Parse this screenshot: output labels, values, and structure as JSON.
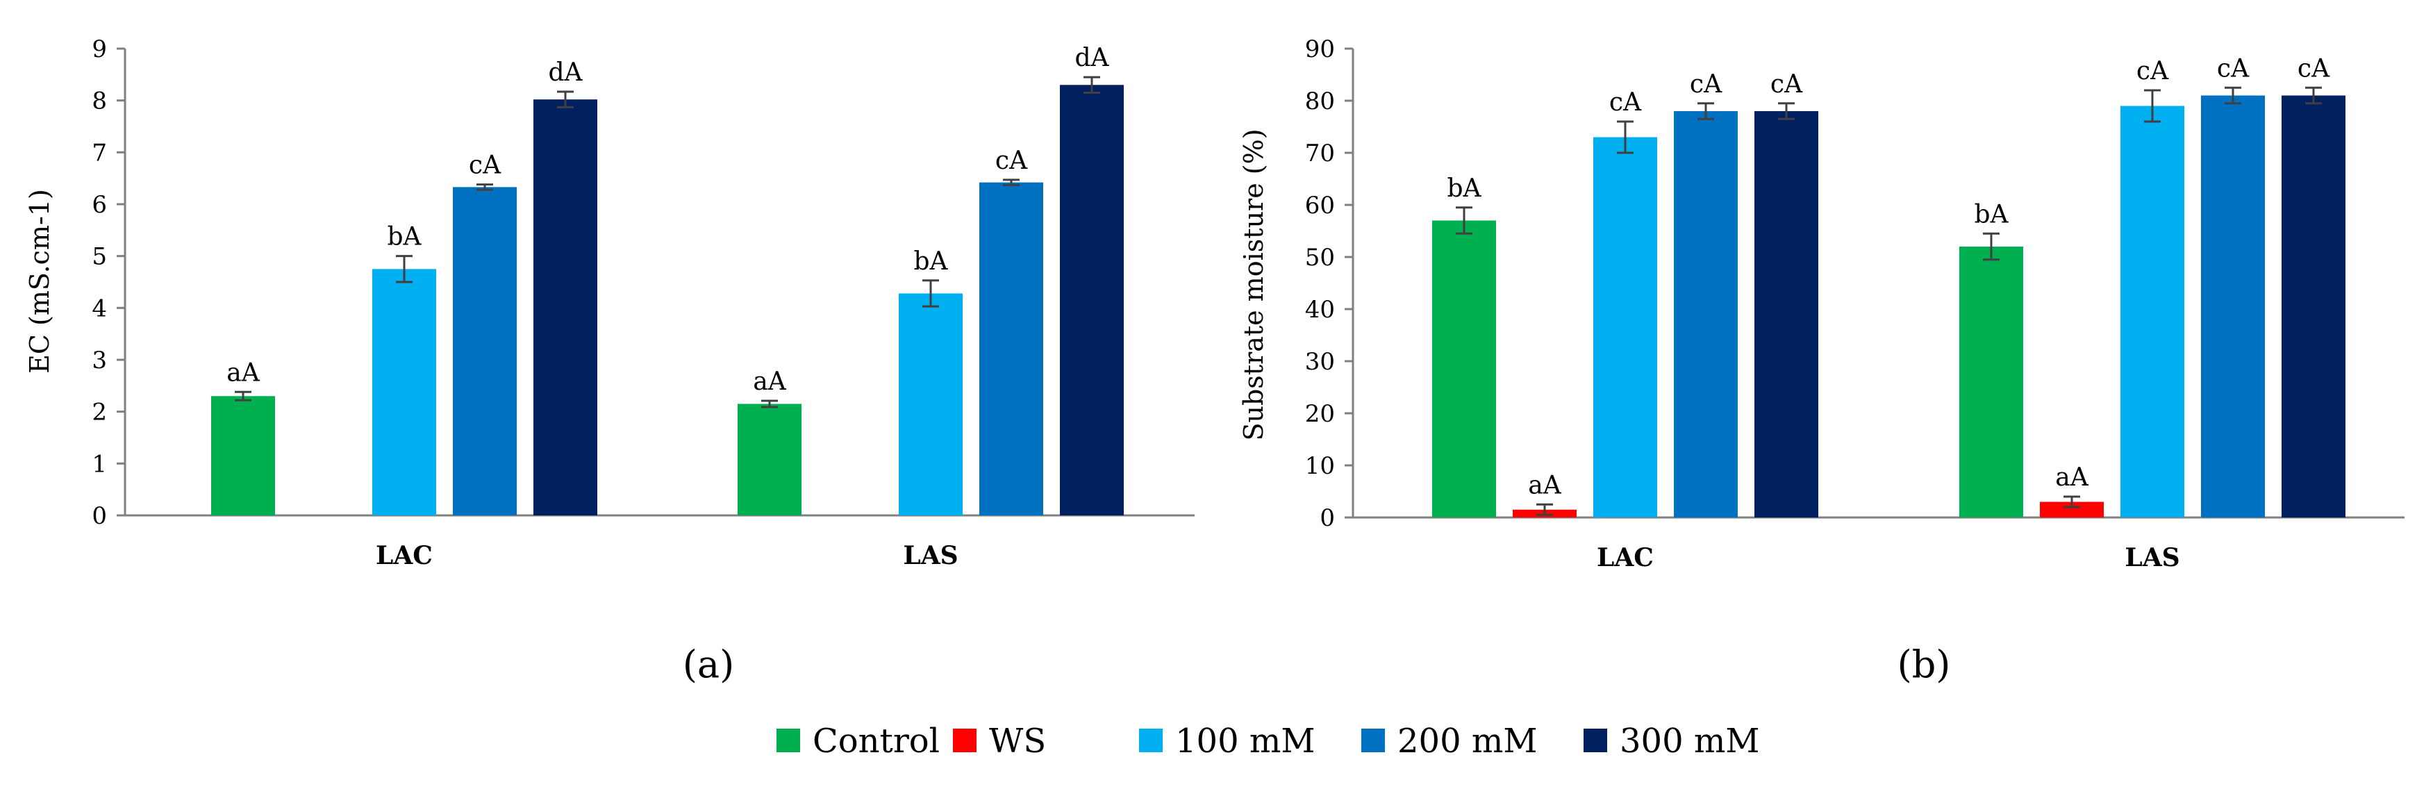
{
  "colors": {
    "Control": "#00b050",
    "WS": "#ff0000",
    "100 mM": "#00b0f0",
    "200 mM": "#0070c0",
    "300 mM": "#002060",
    "axis": "#808080",
    "errorbar": "#404040"
  },
  "legend": {
    "position": "bottom-center",
    "items": [
      "Control",
      "WS",
      "100 mM",
      "200 mM",
      "300 mM"
    ]
  },
  "chart_data": [
    {
      "type": "bar",
      "panel_label": "(a)",
      "ylabel": "EC (mS.cm-1)",
      "xlabel": "",
      "ylim": [
        0,
        9
      ],
      "yticks": [
        0,
        1,
        2,
        3,
        4,
        5,
        6,
        7,
        8,
        9
      ],
      "grid": false,
      "categories": [
        "LAC",
        "LAS"
      ],
      "series": [
        {
          "name": "Control",
          "values": [
            2.3,
            2.15
          ],
          "errors": [
            0.08,
            0.06
          ],
          "labels": [
            "aA",
            "aA"
          ]
        },
        {
          "name": "WS",
          "values": [
            null,
            null
          ],
          "errors": [
            null,
            null
          ],
          "labels": [
            "",
            ""
          ]
        },
        {
          "name": "100 mM",
          "values": [
            4.75,
            4.28
          ],
          "errors": [
            0.25,
            0.25
          ],
          "labels": [
            "bA",
            "bA"
          ]
        },
        {
          "name": "200 mM",
          "values": [
            6.33,
            6.42
          ],
          "errors": [
            0.05,
            0.05
          ],
          "labels": [
            "cA",
            "cA"
          ]
        },
        {
          "name": "300 mM",
          "values": [
            8.02,
            8.3
          ],
          "errors": [
            0.15,
            0.15
          ],
          "labels": [
            "dA",
            "dA"
          ]
        }
      ]
    },
    {
      "type": "bar",
      "panel_label": "(b)",
      "ylabel": "Substrate moisture (%)",
      "xlabel": "",
      "ylim": [
        0,
        90
      ],
      "yticks": [
        0,
        10,
        20,
        30,
        40,
        50,
        60,
        70,
        80,
        90
      ],
      "grid": false,
      "categories": [
        "LAC",
        "LAS"
      ],
      "series": [
        {
          "name": "Control",
          "values": [
            57,
            52
          ],
          "errors": [
            2.5,
            2.5
          ],
          "labels": [
            "bA",
            "bA"
          ]
        },
        {
          "name": "WS",
          "values": [
            1.5,
            3
          ],
          "errors": [
            1,
            1
          ],
          "labels": [
            "aA",
            "aA"
          ]
        },
        {
          "name": "100 mM",
          "values": [
            73,
            79
          ],
          "errors": [
            3,
            3
          ],
          "labels": [
            "cA",
            "cA"
          ]
        },
        {
          "name": "200 mM",
          "values": [
            78,
            81
          ],
          "errors": [
            1.5,
            1.5
          ],
          "labels": [
            "cA",
            "cA"
          ]
        },
        {
          "name": "300 mM",
          "values": [
            78,
            81
          ],
          "errors": [
            1.5,
            1.5
          ],
          "labels": [
            "cA",
            "cA"
          ]
        }
      ]
    }
  ]
}
